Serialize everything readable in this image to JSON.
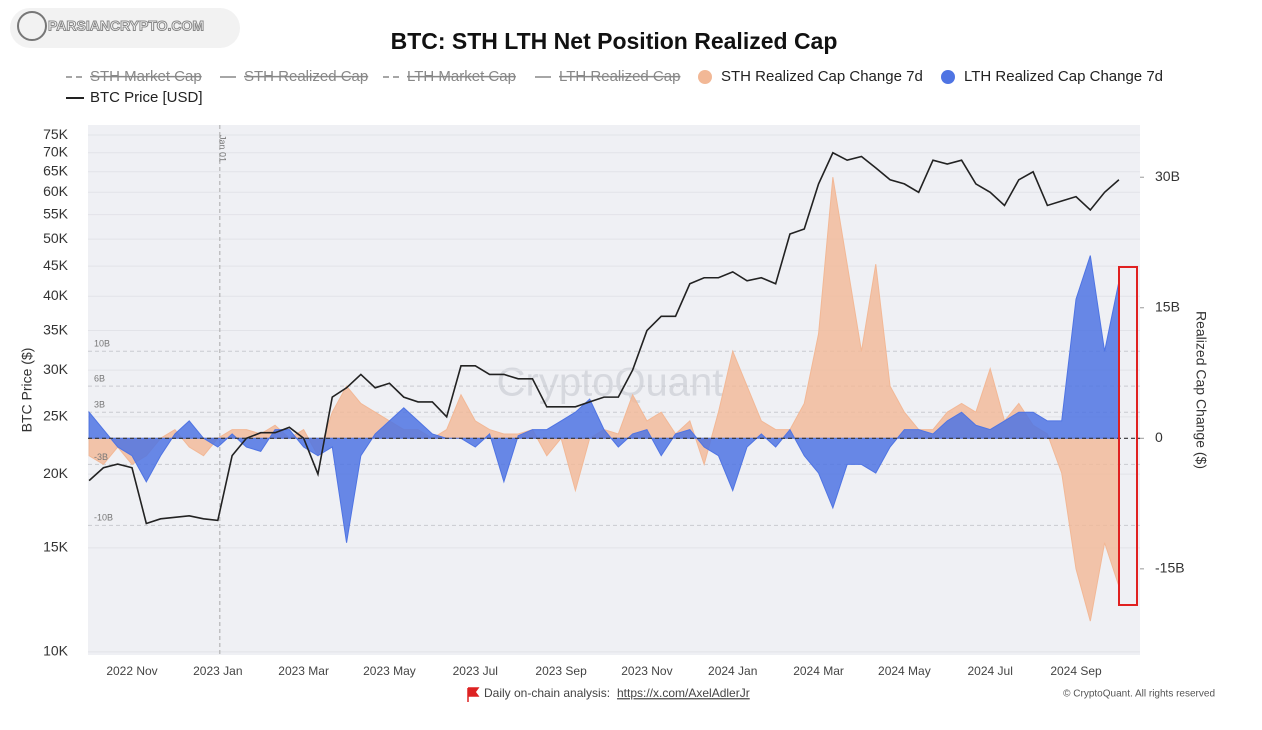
{
  "chart_data": {
    "type": "combo",
    "watermark_logo": "PARSIANCRYPTO.COM",
    "watermark": "CryptoQuant",
    "title": "BTC: STH LTH Net Position Realized Cap",
    "ylabel": "BTC Price ($)",
    "y2label": "Realized Cap Change ($)",
    "yscale": "log",
    "ylim": [
      9880,
      78000
    ],
    "yticks": [
      {
        "value": 10000,
        "label": "10K"
      },
      {
        "value": 15000,
        "label": "15K"
      },
      {
        "value": 20000,
        "label": "20K"
      },
      {
        "value": 25000,
        "label": "25K"
      },
      {
        "value": 30000,
        "label": "30K"
      },
      {
        "value": 35000,
        "label": "35K"
      },
      {
        "value": 40000,
        "label": "40K"
      },
      {
        "value": 45000,
        "label": "45K"
      },
      {
        "value": 50000,
        "label": "50K"
      },
      {
        "value": 55000,
        "label": "55K"
      },
      {
        "value": 60000,
        "label": "60K"
      },
      {
        "value": 65000,
        "label": "65K"
      },
      {
        "value": 70000,
        "label": "70K"
      },
      {
        "value": 75000,
        "label": "75K"
      }
    ],
    "y2lim": [
      -24.9,
      36.0
    ],
    "y2ticks": [
      {
        "value": -15,
        "label": "-15B"
      },
      0,
      {
        "value": 15,
        "label": "15B"
      },
      {
        "value": 30,
        "label": "30B"
      }
    ],
    "reference_lines": [
      {
        "value": 10,
        "label": "10B"
      },
      {
        "value": 6,
        "label": "6B"
      },
      {
        "value": 3,
        "label": "3B"
      },
      {
        "value": -3,
        "label": "-3B"
      },
      {
        "value": -10,
        "label": "-10B"
      }
    ],
    "annotation": {
      "label": "Jan 01",
      "at": "2023 Jan"
    },
    "grid": true,
    "hidden_series": [
      {
        "name": "STH Market Cap",
        "dash": "6 4"
      },
      {
        "name": "STH Realized Cap",
        "dash": "none"
      },
      {
        "name": "LTH Market Cap",
        "dash": "6 4"
      },
      {
        "name": "LTH Realized Cap",
        "dash": "none"
      }
    ],
    "x": [
      null,
      null,
      null,
      "2022 Nov",
      null,
      null,
      null,
      null,
      null,
      "2023 Jan",
      null,
      null,
      null,
      null,
      null,
      "2023 Mar",
      null,
      null,
      null,
      null,
      null,
      "2023 May",
      null,
      null,
      null,
      null,
      null,
      "2023 Jul",
      null,
      null,
      null,
      null,
      null,
      "2023 Sep",
      null,
      null,
      null,
      null,
      null,
      "2023 Nov",
      null,
      null,
      null,
      null,
      null,
      "2024 Jan",
      null,
      null,
      null,
      null,
      null,
      "2024 Mar",
      null,
      null,
      null,
      null,
      null,
      "2024 May",
      null,
      null,
      null,
      null,
      null,
      "2024 Jul",
      null,
      null,
      null,
      null,
      null,
      "2024 Sep",
      null,
      null,
      null
    ],
    "series": [
      {
        "name": "STH Realized Cap Change 7d",
        "type": "area",
        "axis": "y2",
        "color": "#f2b896",
        "values": [
          -2,
          -3,
          -1,
          -3,
          -2,
          0,
          1,
          -1,
          -2,
          0,
          1,
          1,
          0.5,
          1.5,
          0,
          1,
          -2,
          3,
          6,
          4,
          3,
          2,
          1,
          1,
          0,
          1,
          5,
          2,
          1,
          0.5,
          0.5,
          1,
          -2,
          0,
          -6,
          0,
          1,
          0.5,
          5,
          2,
          3,
          0.5,
          2,
          -3,
          3,
          10,
          6,
          2,
          1,
          1,
          4,
          12,
          30,
          20,
          10,
          20,
          6,
          3,
          1,
          1,
          3,
          4,
          3,
          8,
          2,
          4,
          1.5,
          0.5,
          -4,
          -15,
          -21,
          -12,
          -17
        ]
      },
      {
        "name": "LTH Realized Cap Change 7d",
        "type": "area",
        "axis": "y2",
        "color": "#4f74e3",
        "values": [
          3,
          1,
          -1,
          -2,
          -5,
          -2,
          0.5,
          2,
          0,
          -1,
          0.5,
          -1,
          -1.5,
          1,
          1,
          -1,
          -2,
          -1,
          -12,
          -2,
          0.5,
          2,
          3.5,
          2,
          0.5,
          0,
          0,
          -1,
          0.5,
          -5,
          0.3,
          1,
          1,
          2,
          3,
          4.5,
          1,
          -1,
          0.5,
          1,
          -2,
          0.5,
          1,
          -1,
          -2,
          -6,
          -1,
          0.5,
          -1,
          1,
          -2,
          -4,
          -8,
          -3,
          -3,
          -4,
          -1,
          1,
          1,
          0.5,
          2,
          3,
          1.5,
          1,
          2,
          3,
          3,
          2,
          2,
          16,
          21,
          10,
          18
        ]
      },
      {
        "name": "BTC Price [USD]",
        "type": "line",
        "axis": "y",
        "color": "#222222",
        "values": [
          19500,
          20500,
          20800,
          20500,
          16500,
          16800,
          16900,
          17000,
          16800,
          16700,
          21500,
          23000,
          23500,
          23500,
          24000,
          23000,
          20000,
          27000,
          28000,
          29500,
          28000,
          28500,
          27000,
          26500,
          26500,
          25000,
          30500,
          30500,
          29500,
          29500,
          29000,
          29000,
          26000,
          26000,
          26000,
          26500,
          27000,
          27000,
          30000,
          35000,
          37000,
          37000,
          42000,
          43000,
          43000,
          44000,
          42500,
          43000,
          42000,
          51000,
          52000,
          62000,
          70000,
          68000,
          69000,
          66000,
          63000,
          62000,
          60000,
          68000,
          67000,
          68000,
          62000,
          60000,
          57000,
          63000,
          65000,
          57000,
          58000,
          59000,
          56000,
          60000,
          63000
        ]
      }
    ],
    "footer": {
      "text": "Daily on-chain analysis:",
      "link": "https://x.com/AxelAdlerJr"
    },
    "copyright": "© CryptoQuant. All rights reserved"
  }
}
